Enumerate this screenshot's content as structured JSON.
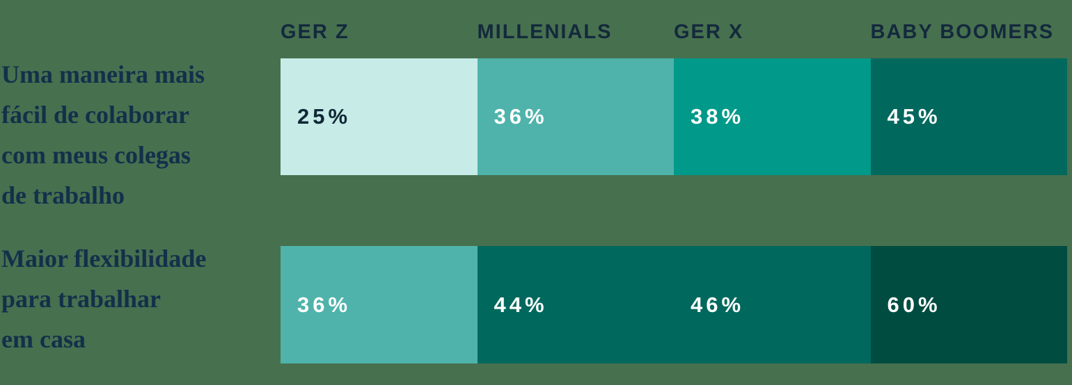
{
  "background_color": "#47704F",
  "header_text_color": "#14293C",
  "row_label_color": "#13304A",
  "chart_data": {
    "type": "heatmap",
    "title": "",
    "xlabel": "",
    "ylabel": "",
    "unit": "%",
    "legend": "none",
    "categories": [
      "GER Z",
      "MILLENIALS",
      "GER X",
      "BABY BOOMERS"
    ],
    "color_scale": [
      "#C7EBE6",
      "#4FB3AB",
      "#00998A",
      "#00685D",
      "#004C41"
    ],
    "rows": [
      {
        "label": "Uma maneira mais fácil de colaborar com meus colegas de trabalho",
        "label_lines": [
          "Uma maneira mais",
          "fácil de colaborar",
          "com meus colegas",
          "de trabalho"
        ],
        "values": [
          25,
          36,
          38,
          45
        ],
        "cells": [
          {
            "text": "25%",
            "bg": "#C7EBE6",
            "fg": "#0F2937"
          },
          {
            "text": "36%",
            "bg": "#4FB3AB",
            "fg": "#FFFFFF"
          },
          {
            "text": "38%",
            "bg": "#00998A",
            "fg": "#FFFFFF"
          },
          {
            "text": "45%",
            "bg": "#00685D",
            "fg": "#FFFFFF"
          }
        ]
      },
      {
        "label": "Maior flexibilidade para trabalhar em casa",
        "label_lines": [
          "Maior flexibilidade",
          "para trabalhar",
          "em casa"
        ],
        "values": [
          36,
          44,
          46,
          60
        ],
        "cells": [
          {
            "text": "36%",
            "bg": "#4FB3AB",
            "fg": "#FFFFFF"
          },
          {
            "text": "44%",
            "bg": "#00685D",
            "fg": "#FFFFFF"
          },
          {
            "text": "46%",
            "bg": "#00685D",
            "fg": "#FFFFFF"
          },
          {
            "text": "60%",
            "bg": "#004C41",
            "fg": "#FFFFFF"
          }
        ]
      }
    ]
  }
}
